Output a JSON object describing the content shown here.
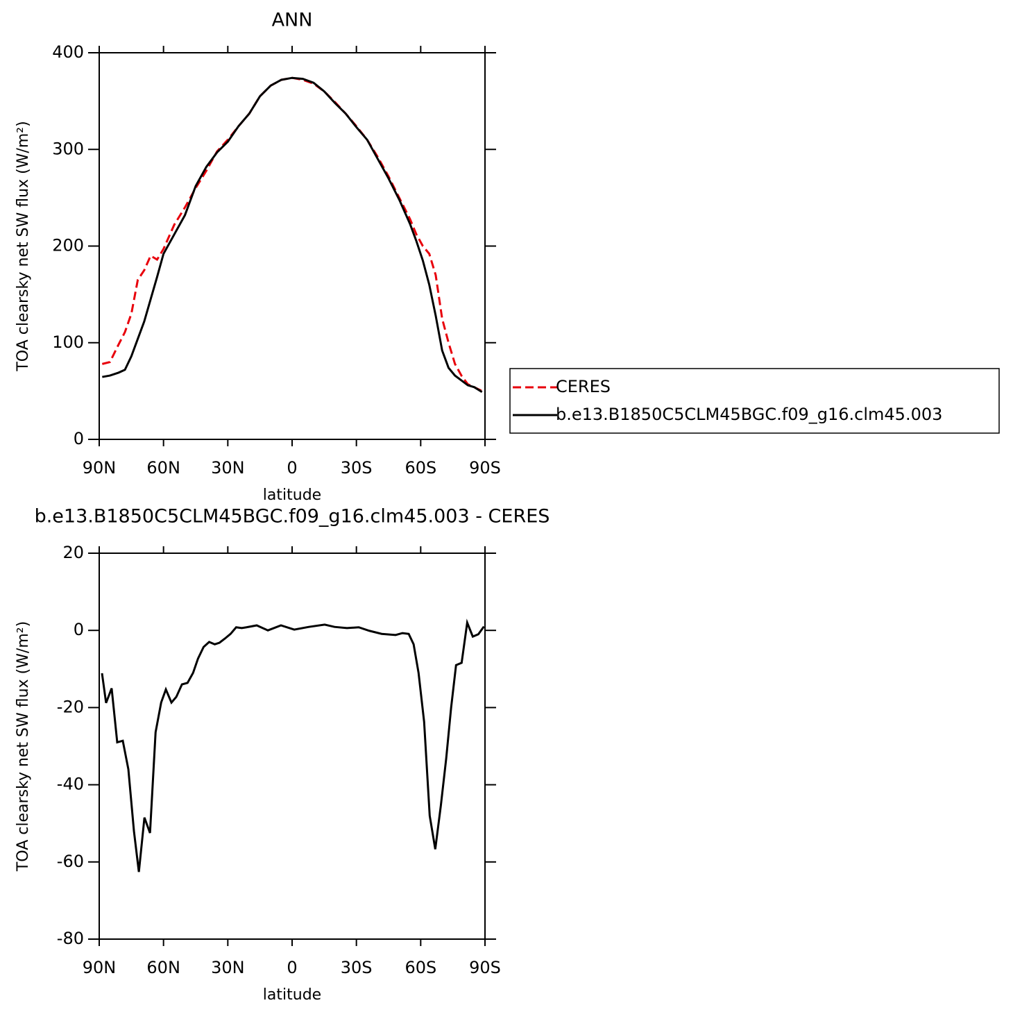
{
  "chart_data": [
    {
      "type": "line",
      "title": "ANN",
      "xlabel": "latitude",
      "ylabel": "TOA clearsky net SW flux (W/m²)",
      "x": [
        88.6,
        85,
        81,
        78,
        75,
        72,
        69,
        66,
        63,
        60,
        55,
        50,
        45,
        40,
        35,
        30,
        25,
        20,
        15,
        10,
        5,
        0,
        -5,
        -10,
        -15,
        -20,
        -25,
        -30,
        -35,
        -40,
        -45,
        -50,
        -55,
        -58,
        -61,
        -64,
        -67,
        -70,
        -73,
        -76,
        -79,
        -82,
        -85,
        -88.6
      ],
      "series": [
        {
          "name": "CERES",
          "color": "#e8000b",
          "dash": true,
          "values": [
            78,
            80,
            98,
            111,
            130,
            165,
            175,
            190,
            186,
            197,
            222,
            240,
            260,
            278,
            298,
            310,
            324,
            337,
            355,
            366,
            372,
            374,
            372,
            368,
            360,
            349,
            337,
            324,
            310,
            292,
            272,
            250,
            228,
            212,
            200,
            192,
            170,
            125,
            100,
            78,
            66,
            57,
            54,
            50
          ]
        },
        {
          "name": "b.e13.B1850C5CLM45BGC.f09_g16.clm45.003",
          "color": "#000000",
          "dash": false,
          "values": [
            64.6,
            66,
            69,
            72,
            86,
            104,
            122,
            145,
            168,
            192,
            212,
            232,
            262,
            282,
            297,
            308,
            324,
            337,
            355,
            366,
            372,
            374,
            373,
            369,
            360,
            348,
            337,
            323,
            310,
            290,
            270,
            248,
            223,
            205,
            185,
            160,
            128,
            92,
            74,
            66,
            61,
            56,
            54,
            49
          ]
        }
      ],
      "xlim": [
        90,
        -90
      ],
      "xticks": [
        {
          "value": 90,
          "label": "90N"
        },
        {
          "value": 60,
          "label": "60N"
        },
        {
          "value": 30,
          "label": "30N"
        },
        0,
        {
          "value": -30,
          "label": "30S"
        },
        {
          "value": -60,
          "label": "60S"
        },
        {
          "value": -90,
          "label": "90S"
        }
      ],
      "ylim": [
        0,
        400
      ],
      "yticks": [
        0,
        100,
        200,
        300,
        400
      ],
      "legend": "right"
    },
    {
      "type": "line",
      "title": "b.e13.B1850C5CLM45BGC.f09_g16.clm45.003 - CERES",
      "xlabel": "latitude",
      "ylabel": "TOA clearsky net SW flux (W/m²)",
      "x": [
        88.7,
        86.8,
        84.2,
        81.6,
        79.0,
        76.4,
        73.8,
        71.5,
        68.9,
        66.3,
        63.7,
        61.1,
        58.9,
        56.3,
        54.0,
        51.4,
        48.8,
        46.2,
        43.9,
        41.3,
        38.7,
        36.1,
        33.9,
        31.3,
        28.7,
        26.1,
        23.5,
        21.3,
        16.5,
        11.3,
        5.2,
        -1.0,
        -7.8,
        -15.2,
        -19.8,
        -25.6,
        -31.1,
        -36.0,
        -41.8,
        -48.3,
        -51.5,
        -54.4,
        -56.7,
        -59.0,
        -61.6,
        -64.2,
        -66.8,
        -69.4,
        -71.9,
        -74.2,
        -76.5,
        -79.1,
        -81.7,
        -84.3,
        -86.9,
        -89.5
      ],
      "values": [
        -11.1,
        -18.8,
        -15,
        -29,
        -28.6,
        -36,
        -52,
        -62.6,
        -48.5,
        -52.5,
        -26.4,
        -18.7,
        -15.3,
        -18.7,
        -17.2,
        -14,
        -13.6,
        -11,
        -7.3,
        -4.3,
        -3,
        -3.6,
        -3.2,
        -2.1,
        -0.9,
        0.8,
        0.6,
        0.8,
        1.3,
        0,
        1.3,
        0.2,
        0.9,
        1.5,
        0.9,
        0.6,
        0.8,
        -0.1,
        -0.9,
        -1.2,
        -0.7,
        -0.9,
        -3.6,
        -11,
        -23.7,
        -48,
        -56.7,
        -45.4,
        -33.2,
        -20,
        -9,
        -8.4,
        2,
        -1.6,
        -1,
        1
      ],
      "color": "#000000",
      "xlim": [
        90,
        -90
      ],
      "xticks": [
        {
          "value": 90,
          "label": "90N"
        },
        {
          "value": 60,
          "label": "60N"
        },
        {
          "value": 30,
          "label": "30N"
        },
        0,
        {
          "value": -30,
          "label": "30S"
        },
        {
          "value": -60,
          "label": "60S"
        },
        {
          "value": -90,
          "label": "90S"
        }
      ],
      "ylim": [
        -80,
        20
      ],
      "yticks": [
        -80,
        -60,
        -40,
        -20,
        0,
        20
      ]
    }
  ]
}
